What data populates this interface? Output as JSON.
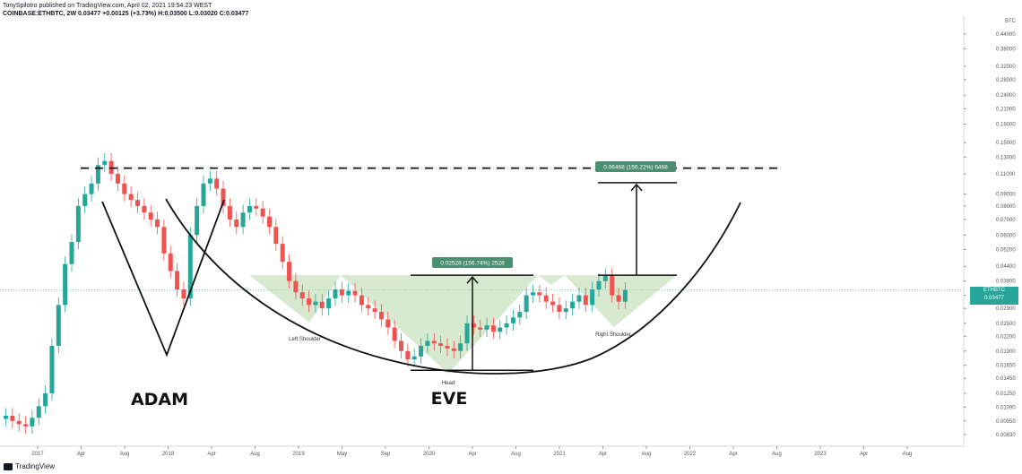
{
  "header": {
    "line1": "TonySpilotro published on TradingView.com, April 02, 2021 19:54:23 WEST",
    "line2": "COINBASE:ETHBTC, 2W  0.03477  +0.00125 (+3.73%)  H:0.03500  L:0.03020  C:0.03477"
  },
  "price_axis": {
    "ticks": [
      "0.44000",
      "0.38000",
      "0.32000",
      "0.28000",
      "0.24000",
      "0.21000",
      "0.18000",
      "0.15000",
      "0.13000",
      "0.11000",
      "0.09000",
      "0.08000",
      "0.07000",
      "0.06000",
      "0.05200",
      "0.04400",
      "0.03800",
      "0.03300",
      "0.02900",
      "0.02500",
      "0.02200",
      "0.01900",
      "0.01650",
      "0.01450",
      "0.01250",
      "0.01090",
      "0.00950",
      "0.00830"
    ],
    "currency": "BTC",
    "current_symbol": "ETHBTC",
    "current_price": "0.03477",
    "countdown": "5d 4h"
  },
  "time_axis": {
    "labels": [
      "2017",
      "Apr",
      "Aug",
      "2018",
      "Apr",
      "Aug",
      "2019",
      "May",
      "Sep",
      "2020",
      "Apr",
      "Aug",
      "2021",
      "Apr",
      "Aug",
      "2022",
      "Apr",
      "Aug",
      "2023",
      "Apr",
      "Aug"
    ]
  },
  "annotations": {
    "adam": "ADAM",
    "eve": "EVE",
    "left_shoulder": "Left Shoulder",
    "head": "Head",
    "right_shoulder": "Right Shoulder",
    "measure1": "0.02528 (156.74%) 2528",
    "measure2": "0.06468 (156.22%) 6468"
  },
  "colors": {
    "up": "#26a69a",
    "down": "#ef5350",
    "zone": "#b7d7a8",
    "tag": "#4a8f6f"
  },
  "footer": {
    "brand": "TradingView"
  },
  "chart_data": {
    "type": "candlestick",
    "symbol": "COINBASE:ETHBTC",
    "interval": "2W",
    "scale": "log",
    "close_series": [
      0.01,
      0.0095,
      0.0092,
      0.009,
      0.0098,
      0.011,
      0.0125,
      0.02,
      0.03,
      0.045,
      0.056,
      0.08,
      0.09,
      0.1,
      0.12,
      0.125,
      0.11,
      0.1,
      0.09,
      0.085,
      0.08,
      0.075,
      0.07,
      0.065,
      0.05,
      0.042,
      0.035,
      0.032,
      0.06,
      0.08,
      0.1,
      0.105,
      0.095,
      0.08,
      0.07,
      0.065,
      0.075,
      0.08,
      0.078,
      0.072,
      0.065,
      0.055,
      0.046,
      0.038,
      0.034,
      0.032,
      0.03,
      0.031,
      0.029,
      0.032,
      0.035,
      0.033,
      0.0345,
      0.033,
      0.03,
      0.029,
      0.028,
      0.026,
      0.024,
      0.021,
      0.019,
      0.0175,
      0.018,
      0.02,
      0.021,
      0.0205,
      0.02,
      0.0195,
      0.019,
      0.0205,
      0.025,
      0.024,
      0.0235,
      0.0245,
      0.023,
      0.024,
      0.025,
      0.0265,
      0.028,
      0.033,
      0.034,
      0.033,
      0.031,
      0.03,
      0.028,
      0.029,
      0.031,
      0.033,
      0.03,
      0.035,
      0.038,
      0.04,
      0.033,
      0.031,
      0.0348
    ],
    "current": 0.03477,
    "change": 0.00125,
    "change_pct": 3.73,
    "high": 0.035,
    "low": 0.0302,
    "resistance_level": 0.1165,
    "neckline": 0.0403,
    "head_low": 0.0157,
    "target_move": 0.06468
  }
}
